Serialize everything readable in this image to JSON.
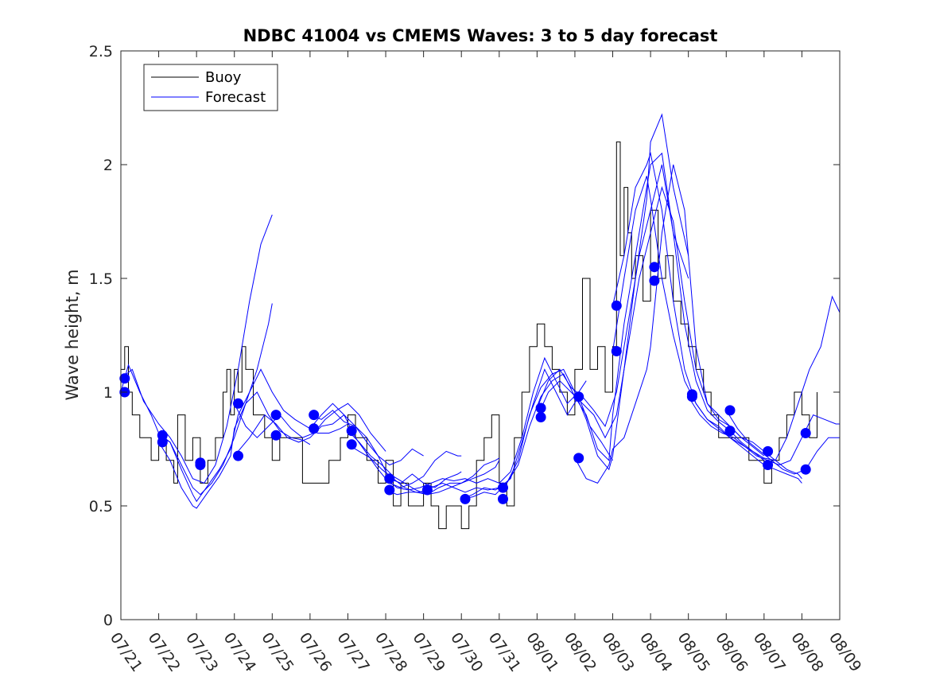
{
  "chart_data": {
    "type": "line",
    "title": "NDBC 41004 vs CMEMS Waves: 3 to 5 day forecast",
    "xlabel": "",
    "ylabel": "Wave height, m",
    "xlim": [
      0,
      19
    ],
    "ylim": [
      0,
      2.5
    ],
    "x_tick_labels": [
      "07/21",
      "07/22",
      "07/23",
      "07/24",
      "07/25",
      "07/26",
      "07/27",
      "07/28",
      "07/29",
      "07/30",
      "07/31",
      "08/01",
      "08/02",
      "08/03",
      "08/04",
      "08/05",
      "08/06",
      "08/07",
      "08/08",
      "08/09"
    ],
    "y_ticks": [
      0,
      0.5,
      1,
      1.5,
      2,
      2.5
    ],
    "y_tick_labels": [
      "0",
      "0.5",
      "1",
      "1.5",
      "2",
      "2.5"
    ],
    "legend": {
      "position": "top-left",
      "entries": [
        {
          "label": "Buoy",
          "color": "#000000"
        },
        {
          "label": "Forecast",
          "color": "#0000ff"
        }
      ]
    },
    "colors": {
      "buoy": "#000000",
      "forecast": "#0000ff"
    },
    "buoy": {
      "name": "Buoy",
      "x": [
        0,
        0.1,
        0.2,
        0.3,
        0.5,
        0.8,
        1.0,
        1.2,
        1.4,
        1.5,
        1.7,
        1.9,
        2.1,
        2.3,
        2.5,
        2.7,
        2.8,
        2.9,
        3.0,
        3.1,
        3.2,
        3.3,
        3.5,
        3.8,
        4.0,
        4.2,
        4.5,
        4.8,
        5.0,
        5.2,
        5.5,
        5.8,
        6.0,
        6.2,
        6.5,
        6.8,
        7.0,
        7.2,
        7.4,
        7.6,
        7.8,
        8.0,
        8.2,
        8.4,
        8.6,
        8.8,
        9.0,
        9.2,
        9.4,
        9.6,
        9.8,
        10.0,
        10.2,
        10.4,
        10.6,
        10.8,
        11.0,
        11.2,
        11.4,
        11.6,
        11.8,
        12.0,
        12.2,
        12.4,
        12.6,
        12.8,
        13.0,
        13.1,
        13.2,
        13.3,
        13.4,
        13.5,
        13.6,
        13.8,
        14.0,
        14.2,
        14.4,
        14.6,
        14.8,
        15.0,
        15.2,
        15.4,
        15.6,
        15.8,
        16.0,
        16.2,
        16.4,
        16.6,
        16.8,
        17.0,
        17.2,
        17.4,
        17.6,
        17.8,
        18.0,
        18.2,
        18.4
      ],
      "y": [
        1.1,
        1.2,
        1.0,
        0.9,
        0.8,
        0.7,
        0.8,
        0.7,
        0.6,
        0.9,
        0.7,
        0.8,
        0.6,
        0.7,
        0.8,
        1.0,
        1.1,
        0.9,
        1.1,
        1.0,
        1.2,
        1.1,
        0.9,
        0.8,
        0.7,
        0.8,
        0.8,
        0.6,
        0.6,
        0.6,
        0.7,
        0.8,
        0.9,
        0.8,
        0.7,
        0.6,
        0.7,
        0.5,
        0.6,
        0.5,
        0.5,
        0.6,
        0.5,
        0.4,
        0.5,
        0.5,
        0.4,
        0.5,
        0.7,
        0.8,
        0.9,
        0.6,
        0.5,
        0.8,
        1.0,
        1.2,
        1.3,
        1.2,
        1.1,
        1.0,
        0.9,
        1.1,
        1.5,
        1.1,
        1.2,
        1.0,
        1.2,
        2.1,
        1.6,
        1.9,
        1.7,
        1.5,
        1.6,
        1.4,
        1.8,
        1.5,
        1.6,
        1.4,
        1.3,
        1.2,
        1.1,
        1.0,
        0.9,
        0.8,
        0.8,
        0.8,
        0.8,
        0.7,
        0.7,
        0.6,
        0.7,
        0.8,
        0.9,
        1.0,
        0.9,
        0.8,
        1.0
      ]
    },
    "forecast_series": [
      {
        "x": [
          0,
          0.3,
          0.6,
          1.0,
          1.3,
          1.6,
          1.9,
          2.2,
          2.5,
          2.8,
          3.1,
          3.4,
          3.7,
          4.0
        ],
        "y": [
          1.06,
          1.1,
          0.96,
          0.86,
          0.8,
          0.72,
          0.62,
          0.6,
          0.68,
          0.85,
          1.1,
          1.4,
          1.65,
          1.78
        ]
      },
      {
        "x": [
          0,
          0.2,
          0.5,
          0.8,
          1.0,
          1.3,
          1.6,
          1.9,
          2.1,
          2.4,
          2.7,
          3.0,
          3.3,
          3.6,
          3.9,
          4.0
        ],
        "y": [
          1.0,
          1.12,
          1.0,
          0.9,
          0.82,
          0.78,
          0.68,
          0.58,
          0.55,
          0.6,
          0.68,
          0.8,
          0.95,
          1.1,
          1.3,
          1.39
        ]
      },
      {
        "x": [
          1.0,
          1.3,
          1.6,
          1.9,
          2.0,
          2.3,
          2.6,
          2.9,
          3.1,
          3.4,
          3.7,
          4.0,
          4.3,
          4.6,
          4.9,
          5.2,
          5.5,
          5.8,
          6.0
        ],
        "y": [
          0.81,
          0.78,
          0.66,
          0.55,
          0.52,
          0.59,
          0.66,
          0.75,
          0.9,
          1.0,
          1.1,
          1.0,
          0.92,
          0.88,
          0.85,
          0.82,
          0.82,
          0.84,
          0.86
        ]
      },
      {
        "x": [
          1.0,
          1.3,
          1.6,
          1.9,
          2.0,
          2.3,
          2.6,
          2.9,
          3.0,
          3.3,
          3.6,
          3.9,
          4.2,
          4.5,
          4.8,
          5.0
        ],
        "y": [
          0.78,
          0.7,
          0.58,
          0.5,
          0.49,
          0.56,
          0.63,
          0.72,
          0.84,
          0.95,
          1.0,
          0.9,
          0.83,
          0.8,
          0.79,
          0.77
        ]
      },
      {
        "x": [
          3.0,
          3.3,
          3.6,
          3.9,
          4.2,
          4.5,
          4.8,
          5.1,
          5.4,
          5.7,
          6.0,
          6.3,
          6.6,
          6.9,
          7.0
        ],
        "y": [
          0.95,
          0.85,
          0.8,
          0.85,
          0.9,
          0.84,
          0.8,
          0.82,
          0.88,
          0.92,
          0.95,
          0.9,
          0.82,
          0.76,
          0.74
        ]
      },
      {
        "x": [
          3.0,
          3.4,
          3.8,
          4.1,
          4.4,
          4.7,
          5.0,
          5.3,
          5.6,
          5.9,
          6.2,
          6.5,
          6.8,
          7.1,
          7.4,
          7.7,
          8.0
        ],
        "y": [
          0.72,
          0.8,
          0.9,
          0.86,
          0.8,
          0.78,
          0.8,
          0.85,
          0.86,
          0.9,
          0.85,
          0.78,
          0.72,
          0.68,
          0.7,
          0.75,
          0.72
        ]
      },
      {
        "x": [
          5.0,
          5.3,
          5.6,
          5.9,
          6.2,
          6.5,
          6.8,
          7.1,
          7.4,
          7.7,
          8.0,
          8.3,
          8.6,
          8.9,
          9.0
        ],
        "y": [
          0.9,
          0.88,
          0.92,
          0.87,
          0.85,
          0.8,
          0.72,
          0.62,
          0.6,
          0.64,
          0.6,
          0.58,
          0.62,
          0.64,
          0.65
        ]
      },
      {
        "x": [
          5.0,
          5.3,
          5.6,
          5.9,
          6.2,
          6.5,
          6.8,
          7.1,
          7.4,
          7.7,
          8.0,
          8.3,
          8.6,
          8.9,
          9.0
        ],
        "y": [
          0.84,
          0.9,
          0.95,
          0.9,
          0.8,
          0.73,
          0.66,
          0.6,
          0.58,
          0.6,
          0.63,
          0.7,
          0.74,
          0.72,
          0.72
        ]
      },
      {
        "x": [
          6.0,
          6.3,
          6.6,
          6.9,
          7.2,
          7.5,
          7.8,
          8.1,
          8.4,
          8.7,
          9.0,
          9.3,
          9.6,
          9.9,
          10.0
        ],
        "y": [
          0.83,
          0.78,
          0.72,
          0.68,
          0.63,
          0.6,
          0.57,
          0.55,
          0.58,
          0.6,
          0.6,
          0.63,
          0.68,
          0.7,
          0.71
        ]
      },
      {
        "x": [
          6.0,
          6.3,
          6.6,
          6.9,
          7.2,
          7.5,
          7.8,
          8.1,
          8.4,
          8.7,
          9.0,
          9.3,
          9.6,
          9.9,
          10.0
        ],
        "y": [
          0.77,
          0.74,
          0.71,
          0.66,
          0.62,
          0.58,
          0.56,
          0.55,
          0.56,
          0.58,
          0.6,
          0.62,
          0.64,
          0.67,
          0.7
        ]
      },
      {
        "x": [
          7.0,
          7.3,
          7.6,
          7.9,
          8.2,
          8.5,
          8.8,
          9.1,
          9.4,
          9.7,
          10.0,
          10.3,
          10.6,
          10.9,
          11.2,
          11.5,
          11.8,
          12.1,
          12.3
        ],
        "y": [
          0.62,
          0.58,
          0.57,
          0.58,
          0.6,
          0.62,
          0.61,
          0.62,
          0.6,
          0.62,
          0.6,
          0.65,
          0.8,
          1.0,
          1.15,
          1.05,
          0.95,
          1.0,
          1.05
        ]
      },
      {
        "x": [
          7.0,
          7.3,
          7.6,
          7.9,
          8.2,
          8.5,
          8.8,
          9.1,
          9.4,
          9.7,
          10.0,
          10.3,
          10.6,
          10.9,
          11.2,
          11.5,
          11.8,
          12.1,
          12.4,
          12.7,
          13.0
        ],
        "y": [
          0.57,
          0.55,
          0.56,
          0.56,
          0.58,
          0.6,
          0.58,
          0.56,
          0.58,
          0.57,
          0.58,
          0.62,
          0.78,
          0.95,
          1.1,
          1.0,
          0.9,
          0.98,
          0.85,
          0.78,
          0.7
        ]
      },
      {
        "x": [
          9.0,
          9.3,
          9.6,
          9.9,
          10.2,
          10.5,
          10.8,
          11.1,
          11.4,
          11.7,
          12.0,
          12.3,
          12.6,
          12.9,
          13.0,
          13.3,
          13.6,
          13.9,
          14.0,
          14.3,
          14.6,
          15.0
        ],
        "y": [
          0.53,
          0.54,
          0.56,
          0.55,
          0.6,
          0.68,
          0.85,
          0.98,
          1.05,
          1.08,
          0.98,
          0.9,
          0.75,
          0.7,
          0.9,
          1.3,
          1.6,
          1.9,
          2.0,
          2.05,
          1.7,
          1.5
        ]
      },
      {
        "x": [
          9.0,
          9.3,
          9.6,
          9.9,
          10.2,
          10.5,
          10.8,
          11.1,
          11.4,
          11.7,
          12.0,
          12.3,
          12.6,
          12.9,
          13.0,
          13.3,
          13.6,
          13.9,
          14.0,
          14.3,
          14.6,
          15.0
        ],
        "y": [
          0.53,
          0.55,
          0.58,
          0.57,
          0.6,
          0.7,
          0.9,
          1.02,
          1.08,
          1.1,
          1.0,
          0.88,
          0.72,
          0.66,
          0.72,
          1.1,
          1.5,
          1.85,
          2.1,
          2.22,
          1.9,
          1.6
        ]
      },
      {
        "x": [
          11.0,
          11.3,
          11.6,
          11.9,
          12.2,
          12.5,
          12.8,
          13.1,
          13.4,
          13.7,
          14.0,
          14.3,
          14.6,
          14.9,
          15.2,
          15.5,
          15.8,
          16.1,
          16.4,
          16.7,
          17.0
        ],
        "y": [
          0.89,
          1.0,
          1.05,
          1.0,
          0.95,
          0.9,
          0.8,
          0.9,
          1.2,
          1.5,
          1.7,
          1.9,
          1.75,
          1.4,
          1.1,
          0.95,
          0.9,
          0.85,
          0.8,
          0.76,
          0.72
        ]
      },
      {
        "x": [
          11.0,
          11.3,
          11.6,
          11.9,
          12.2,
          12.5,
          12.8,
          13.1,
          13.4,
          13.7,
          14.0,
          14.3,
          14.6,
          14.9,
          15.2,
          15.5,
          15.8,
          16.1,
          16.4,
          16.7,
          17.0
        ],
        "y": [
          0.93,
          1.05,
          1.1,
          1.02,
          0.98,
          0.92,
          0.85,
          1.0,
          1.3,
          1.6,
          1.8,
          2.0,
          1.7,
          1.3,
          1.05,
          0.92,
          0.87,
          0.83,
          0.78,
          0.74,
          0.7
        ]
      },
      {
        "x": [
          12.0,
          12.3,
          12.6,
          12.9,
          13.0,
          13.3,
          13.6,
          13.9,
          14.0,
          14.3,
          14.6,
          14.9,
          15.2,
          15.5,
          15.8,
          16.1,
          16.4,
          16.7,
          17.0,
          17.3,
          17.6,
          17.9,
          18.0
        ],
        "y": [
          0.71,
          0.62,
          0.6,
          0.68,
          0.75,
          0.8,
          0.95,
          1.1,
          1.2,
          1.7,
          2.0,
          1.8,
          1.2,
          0.95,
          0.88,
          0.85,
          0.8,
          0.78,
          0.74,
          0.7,
          0.66,
          0.64,
          0.62
        ]
      },
      {
        "x": [
          13.0,
          13.3,
          13.6,
          13.9,
          14.0,
          14.3,
          14.6,
          14.9,
          15.2,
          15.5,
          15.8,
          16.1,
          16.4,
          16.7,
          17.0,
          17.3,
          17.6,
          17.9,
          18.0
        ],
        "y": [
          1.38,
          1.6,
          1.9,
          2.0,
          2.05,
          1.8,
          1.4,
          1.1,
          0.95,
          0.88,
          0.84,
          0.8,
          0.76,
          0.72,
          0.68,
          0.66,
          0.64,
          0.62,
          0.6
        ]
      },
      {
        "x": [
          13.0,
          13.3,
          13.6,
          13.9,
          14.0,
          14.3,
          14.6,
          14.9,
          15.2,
          15.5,
          15.8,
          16.1,
          16.4,
          16.7,
          17.0,
          17.3,
          17.6,
          17.9,
          18.2,
          18.5,
          18.8,
          19.0
        ],
        "y": [
          1.18,
          1.5,
          1.8,
          1.95,
          1.85,
          1.5,
          1.25,
          1.05,
          0.95,
          0.88,
          0.85,
          0.8,
          0.77,
          0.74,
          0.71,
          0.7,
          0.8,
          0.95,
          1.1,
          1.2,
          1.42,
          1.35
        ]
      },
      {
        "x": [
          15.0,
          15.3,
          15.6,
          15.9,
          16.2,
          16.5,
          16.8,
          17.1,
          17.4,
          17.7,
          18.0,
          18.3,
          18.6,
          18.9,
          19.0
        ],
        "y": [
          0.98,
          0.9,
          0.85,
          0.82,
          0.8,
          0.76,
          0.72,
          0.7,
          0.68,
          0.7,
          0.8,
          0.9,
          0.88,
          0.86,
          0.86
        ]
      },
      {
        "x": [
          16.0,
          16.3,
          16.6,
          16.9,
          17.2,
          17.5,
          17.8,
          18.1,
          18.4,
          18.7,
          19.0
        ],
        "y": [
          0.92,
          0.84,
          0.78,
          0.74,
          0.7,
          0.66,
          0.64,
          0.66,
          0.74,
          0.8,
          0.8
        ]
      }
    ],
    "forecast_markers": {
      "x": [
        0.1,
        0.1,
        1.1,
        1.1,
        2.1,
        2.1,
        3.1,
        3.1,
        4.1,
        4.1,
        5.1,
        5.1,
        6.1,
        6.1,
        7.1,
        7.1,
        8.1,
        9.1,
        10.1,
        10.1,
        11.1,
        11.1,
        12.1,
        12.1,
        13.1,
        13.1,
        14.1,
        14.1,
        15.1,
        15.1,
        16.1,
        16.1,
        17.1,
        17.1,
        18.1,
        18.1
      ],
      "y": [
        1.06,
        1.0,
        0.81,
        0.78,
        0.69,
        0.68,
        0.95,
        0.72,
        0.9,
        0.81,
        0.9,
        0.84,
        0.83,
        0.77,
        0.62,
        0.57,
        0.57,
        0.53,
        0.58,
        0.53,
        0.93,
        0.89,
        0.98,
        0.71,
        1.38,
        1.18,
        1.55,
        1.49,
        0.99,
        0.98,
        0.92,
        0.83,
        0.74,
        0.68,
        0.82,
        0.66
      ]
    }
  }
}
